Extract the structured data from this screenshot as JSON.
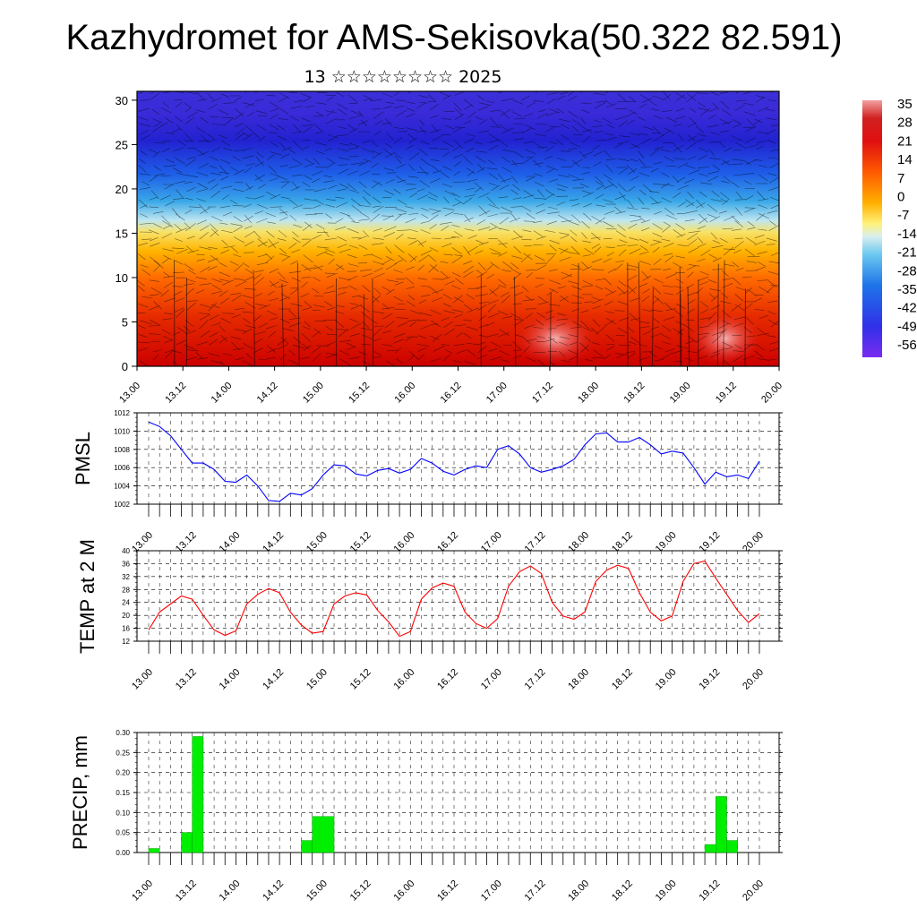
{
  "title": "Kazhydromet for AMS-Sekisovka(50.322 82.591)",
  "subtitle": "13 ☆☆☆☆☆☆☆☆ 2025",
  "chart_data": [
    {
      "type": "heatmap",
      "name": "vertical-cross-section",
      "y_ticks": [
        0,
        5,
        10,
        15,
        20,
        25,
        30
      ],
      "ylim": [
        0,
        31
      ],
      "x_ticks": [
        "13.00",
        "13.12",
        "14.00",
        "14.12",
        "15.00",
        "15.12",
        "16.00",
        "16.12",
        "17.00",
        "17.12",
        "18.00",
        "18.12",
        "19.00",
        "19.12",
        "20.00"
      ],
      "colorbar_labels": [
        "35",
        "28",
        "21",
        "14",
        "7",
        "0",
        "-7",
        "-14",
        "-21",
        "-28",
        "-35",
        "-42",
        "-49",
        "-56"
      ],
      "colorbar_range": [
        -60,
        38
      ]
    },
    {
      "type": "line",
      "ylabel": "PMSL",
      "ylim": [
        1002,
        1012
      ],
      "y_ticks": [
        1002,
        1004,
        1006,
        1008,
        1010,
        1012
      ],
      "x_ticks": [
        "13.00",
        "13.12",
        "14.00",
        "14.12",
        "15.00",
        "15.12",
        "16.00",
        "16.12",
        "17.00",
        "17.12",
        "18.00",
        "18.12",
        "19.00",
        "19.12",
        "20.00"
      ],
      "x_hours": [
        0,
        3,
        6,
        9,
        12,
        15,
        18,
        21,
        24,
        27,
        30,
        33,
        36,
        39,
        42,
        45,
        48,
        51,
        54,
        57,
        60,
        63,
        66,
        69,
        72,
        75,
        78,
        81,
        84,
        87,
        90,
        93,
        96,
        99,
        102,
        105,
        108,
        111,
        114,
        117,
        120,
        123,
        126,
        129,
        132,
        135,
        138,
        141,
        144,
        147,
        150,
        153,
        156,
        159,
        162,
        165,
        168
      ],
      "values": [
        1011.0,
        1010.5,
        1009.5,
        1008.0,
        1006.5,
        1006.5,
        1005.8,
        1004.5,
        1004.4,
        1005.2,
        1004.0,
        1002.4,
        1002.3,
        1003.2,
        1003.0,
        1003.7,
        1005.2,
        1006.3,
        1006.2,
        1005.3,
        1005.1,
        1005.7,
        1005.9,
        1005.4,
        1005.8,
        1007.0,
        1006.5,
        1005.6,
        1005.2,
        1005.8,
        1006.2,
        1006.0,
        1008.0,
        1008.4,
        1007.5,
        1006.0,
        1005.5,
        1005.8,
        1006.2,
        1006.9,
        1008.5,
        1009.7,
        1009.8,
        1008.8,
        1008.8,
        1009.3,
        1008.5,
        1007.5,
        1007.8,
        1007.6,
        1006.0,
        1004.2,
        1005.5,
        1005.0,
        1005.2,
        1004.8,
        1006.7
      ],
      "color": "#0000ff"
    },
    {
      "type": "line",
      "ylabel": "TEMP at 2 M",
      "ylim": [
        12,
        40
      ],
      "y_ticks": [
        12,
        16,
        20,
        24,
        28,
        32,
        36,
        40
      ],
      "x_ticks": [
        "13.00",
        "13.12",
        "14.00",
        "14.12",
        "15.00",
        "15.12",
        "16.00",
        "16.12",
        "17.00",
        "17.12",
        "18.00",
        "18.12",
        "19.00",
        "19.12",
        "20.00"
      ],
      "x_hours": [
        0,
        3,
        6,
        9,
        12,
        15,
        18,
        21,
        24,
        27,
        30,
        33,
        36,
        39,
        42,
        45,
        48,
        51,
        54,
        57,
        60,
        63,
        66,
        69,
        72,
        75,
        78,
        81,
        84,
        87,
        90,
        93,
        96,
        99,
        102,
        105,
        108,
        111,
        114,
        117,
        120,
        123,
        126,
        129,
        132,
        135,
        138,
        141,
        144,
        147,
        150,
        153,
        156,
        159,
        162,
        165,
        168
      ],
      "values": [
        15.5,
        21.0,
        23.5,
        26.0,
        25.0,
        20.0,
        15.5,
        13.8,
        15.2,
        23.5,
        26.5,
        28.3,
        27.0,
        21.0,
        17.0,
        14.5,
        15.0,
        23.5,
        26.0,
        27.0,
        26.3,
        21.5,
        18.0,
        13.5,
        15.0,
        25.0,
        28.5,
        30.0,
        29.0,
        21.0,
        17.5,
        16.0,
        19.0,
        29.0,
        33.5,
        35.3,
        33.0,
        24.0,
        19.8,
        18.8,
        21.0,
        30.5,
        34.0,
        35.5,
        34.5,
        27.0,
        21.0,
        18.3,
        19.8,
        30.5,
        36.0,
        36.8,
        31.5,
        26.5,
        21.5,
        17.8,
        20.5
      ],
      "color": "#ff0000"
    },
    {
      "type": "bar",
      "ylabel": "PRECIP, mm",
      "ylim": [
        0,
        0.3
      ],
      "y_ticks": [
        "0.00",
        "0.05",
        "0.10",
        "0.15",
        "0.20",
        "0.25",
        "0.30"
      ],
      "x_ticks": [
        "13.00",
        "13.12",
        "14.00",
        "14.12",
        "15.00",
        "15.12",
        "16.00",
        "16.12",
        "17.00",
        "17.12",
        "18.00",
        "18.12",
        "19.00",
        "19.12",
        "20.00"
      ],
      "bars": [
        {
          "start_hour": 0,
          "end_hour": 3,
          "value": 0.01
        },
        {
          "start_hour": 9,
          "end_hour": 12,
          "value": 0.05
        },
        {
          "start_hour": 12,
          "end_hour": 15,
          "value": 0.29
        },
        {
          "start_hour": 42,
          "end_hour": 45,
          "value": 0.03
        },
        {
          "start_hour": 45,
          "end_hour": 51,
          "value": 0.09
        },
        {
          "start_hour": 153,
          "end_hour": 156,
          "value": 0.02
        },
        {
          "start_hour": 156,
          "end_hour": 159,
          "value": 0.14
        },
        {
          "start_hour": 159,
          "end_hour": 162,
          "value": 0.03
        }
      ],
      "color": "#00ee00"
    }
  ]
}
